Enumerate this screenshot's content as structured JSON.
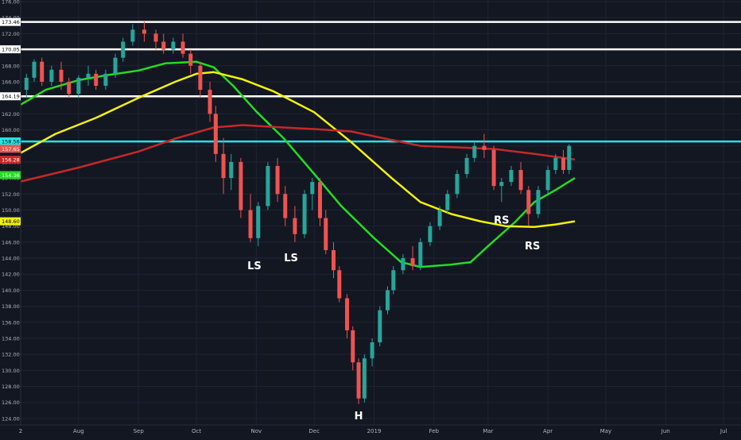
{
  "chart_data": {
    "type": "candlestick",
    "title": "",
    "xlabel": "",
    "ylabel": "",
    "ylim": [
      123.2,
      176.2
    ],
    "y_ticks": [
      124,
      126,
      128,
      130,
      132,
      134,
      136,
      138,
      140,
      142,
      144,
      146,
      148,
      150,
      152,
      154,
      156,
      158,
      160,
      162,
      164,
      166,
      168,
      170,
      172,
      174,
      176
    ],
    "y_tick_labels": [
      "124.00",
      "126.00",
      "128.00",
      "130.00",
      "132.00",
      "134.00",
      "136.00",
      "138.00",
      "140.00",
      "142.00",
      "144.00",
      "146.00",
      "148.00",
      "150.00",
      "152.00",
      "154.00",
      "156.00",
      "158.00",
      "160.00",
      "162.00",
      "164.00",
      "166.00",
      "168.00",
      "170.00",
      "172.00",
      "174.00",
      "176.00"
    ],
    "x_range": [
      "2018-07-02",
      "2019-07-10"
    ],
    "x_ticks": [
      {
        "date": "2018-07-02",
        "label": "2"
      },
      {
        "date": "2018-08-01",
        "label": "Aug"
      },
      {
        "date": "2018-09-01",
        "label": "Sep"
      },
      {
        "date": "2018-10-01",
        "label": "Oct"
      },
      {
        "date": "2018-11-01",
        "label": "Nov"
      },
      {
        "date": "2018-12-01",
        "label": "Dec"
      },
      {
        "date": "2019-01-01",
        "label": "2019"
      },
      {
        "date": "2019-02-01",
        "label": "Feb"
      },
      {
        "date": "2019-03-01",
        "label": "Mar"
      },
      {
        "date": "2019-04-01",
        "label": "Apr"
      },
      {
        "date": "2019-05-01",
        "label": "May"
      },
      {
        "date": "2019-06-01",
        "label": "Jun"
      },
      {
        "date": "2019-07-01",
        "label": "Jul"
      }
    ],
    "colors": {
      "background": "#131722",
      "grid": "#1f2433",
      "axis_text": "#b2b5be",
      "up": "#26a69a",
      "down": "#ef5350",
      "ma_green": "#22dd22",
      "ma_yellow": "#f2f20a",
      "ma_red": "#c62828",
      "level_white": "#ffffff",
      "level_cyan": "#22e5e5"
    },
    "horizontal_levels": [
      {
        "value": 173.46,
        "label": "173.46",
        "color": "#ffffff"
      },
      {
        "value": 170.05,
        "label": "170.05",
        "color": "#ffffff"
      },
      {
        "value": 164.19,
        "label": "164.19",
        "color": "#ffffff"
      },
      {
        "value": 158.56,
        "label": "158.56",
        "color": "#22e5e5"
      }
    ],
    "price_badges": [
      {
        "value": 157.65,
        "label": "157.65",
        "bg": "#ef5350"
      },
      {
        "value": 156.28,
        "label": "156.28",
        "bg": "#c62828"
      },
      {
        "value": 154.36,
        "label": "154.36",
        "bg": "#22dd22"
      },
      {
        "value": 148.6,
        "label": "148.60",
        "bg": "#f2f20a"
      }
    ],
    "series": [
      {
        "type": "moving_average",
        "color": "#22dd22",
        "points": [
          [
            "2018-07-01",
            163.0
          ],
          [
            "2018-07-15",
            165.0
          ],
          [
            "2018-08-01",
            166.2
          ],
          [
            "2018-08-15",
            166.8
          ],
          [
            "2018-09-01",
            167.4
          ],
          [
            "2018-09-15",
            168.3
          ],
          [
            "2018-10-01",
            168.5
          ],
          [
            "2018-10-10",
            167.8
          ],
          [
            "2018-10-20",
            165.5
          ],
          [
            "2018-11-01",
            162.3
          ],
          [
            "2018-11-15",
            159.0
          ],
          [
            "2018-12-01",
            154.5
          ],
          [
            "2018-12-15",
            150.5
          ],
          [
            "2019-01-01",
            146.5
          ],
          [
            "2019-01-15",
            143.5
          ],
          [
            "2019-01-25",
            142.9
          ],
          [
            "2019-02-10",
            143.2
          ],
          [
            "2019-02-20",
            143.5
          ],
          [
            "2019-03-01",
            145.5
          ],
          [
            "2019-03-15",
            148.5
          ],
          [
            "2019-03-25",
            151.0
          ],
          [
            "2019-04-05",
            152.5
          ],
          [
            "2019-04-15",
            154.0
          ]
        ]
      },
      {
        "type": "moving_average",
        "color": "#f2f20a",
        "points": [
          [
            "2018-07-01",
            157.0
          ],
          [
            "2018-07-20",
            159.5
          ],
          [
            "2018-08-10",
            161.5
          ],
          [
            "2018-09-01",
            164.0
          ],
          [
            "2018-09-20",
            166.0
          ],
          [
            "2018-10-01",
            167.0
          ],
          [
            "2018-10-10",
            167.2
          ],
          [
            "2018-10-25",
            166.3
          ],
          [
            "2018-11-10",
            164.8
          ],
          [
            "2018-12-01",
            162.2
          ],
          [
            "2018-12-20",
            158.5
          ],
          [
            "2019-01-10",
            154.0
          ],
          [
            "2019-01-25",
            151.0
          ],
          [
            "2019-02-10",
            149.5
          ],
          [
            "2019-02-25",
            148.6
          ],
          [
            "2019-03-10",
            148.0
          ],
          [
            "2019-03-25",
            147.9
          ],
          [
            "2019-04-05",
            148.2
          ],
          [
            "2019-04-15",
            148.6
          ]
        ]
      },
      {
        "type": "moving_average",
        "color": "#c62828",
        "points": [
          [
            "2018-07-01",
            153.5
          ],
          [
            "2018-08-01",
            155.3
          ],
          [
            "2018-09-01",
            157.3
          ],
          [
            "2018-09-20",
            158.9
          ],
          [
            "2018-10-10",
            160.3
          ],
          [
            "2018-10-25",
            160.6
          ],
          [
            "2018-11-15",
            160.3
          ],
          [
            "2018-12-01",
            160.1
          ],
          [
            "2018-12-20",
            159.8
          ],
          [
            "2019-01-05",
            159.0
          ],
          [
            "2019-01-25",
            158.0
          ],
          [
            "2019-02-15",
            157.8
          ],
          [
            "2019-03-05",
            157.6
          ],
          [
            "2019-03-25",
            157.0
          ],
          [
            "2019-04-15",
            156.3
          ]
        ]
      }
    ],
    "ohlc": [
      [
        "2018-07-05",
        165,
        167,
        164,
        166.5
      ],
      [
        "2018-07-09",
        166.5,
        168.8,
        166,
        168.5
      ],
      [
        "2018-07-13",
        168.5,
        169,
        165.5,
        166
      ],
      [
        "2018-07-18",
        166,
        168,
        165.5,
        167.5
      ],
      [
        "2018-07-23",
        167.5,
        168.5,
        165,
        166
      ],
      [
        "2018-07-27",
        166,
        166.5,
        164,
        164.5
      ],
      [
        "2018-08-01",
        164.5,
        166.8,
        164,
        166.5
      ],
      [
        "2018-08-06",
        166.5,
        168,
        165.5,
        167
      ],
      [
        "2018-08-10",
        167,
        167.5,
        165,
        165.5
      ],
      [
        "2018-08-15",
        165.5,
        167.5,
        165,
        167
      ],
      [
        "2018-08-20",
        167,
        169.5,
        166.5,
        169
      ],
      [
        "2018-08-24",
        169,
        171.5,
        168.5,
        171
      ],
      [
        "2018-08-29",
        171,
        173.2,
        170.5,
        172.5
      ],
      [
        "2018-09-04",
        172.5,
        173.5,
        171,
        172
      ],
      [
        "2018-09-10",
        172,
        172.5,
        170,
        171
      ],
      [
        "2018-09-14",
        171,
        172,
        169.5,
        170
      ],
      [
        "2018-09-19",
        170,
        171.5,
        169.5,
        171
      ],
      [
        "2018-09-24",
        171,
        172,
        169,
        169.5
      ],
      [
        "2018-09-28",
        169.5,
        170,
        167,
        168
      ],
      [
        "2018-10-03",
        168,
        168.5,
        164,
        165
      ],
      [
        "2018-10-08",
        165,
        166,
        161,
        162
      ],
      [
        "2018-10-11",
        162,
        163,
        156,
        157
      ],
      [
        "2018-10-15",
        157,
        159,
        152,
        154
      ],
      [
        "2018-10-19",
        154,
        157,
        152.5,
        156
      ],
      [
        "2018-10-24",
        156,
        156.5,
        149,
        150
      ],
      [
        "2018-10-29",
        150,
        152,
        146,
        146.5
      ],
      [
        "2018-11-02",
        146.5,
        151,
        145.5,
        150.5
      ],
      [
        "2018-11-07",
        150.5,
        156,
        150,
        155.5
      ],
      [
        "2018-11-12",
        155.5,
        156.5,
        151,
        152
      ],
      [
        "2018-11-16",
        152,
        153,
        148,
        149
      ],
      [
        "2018-11-21",
        149,
        150.5,
        146,
        147
      ],
      [
        "2018-11-26",
        147,
        152.5,
        146.5,
        152
      ],
      [
        "2018-11-30",
        152,
        154,
        150,
        153.5
      ],
      [
        "2018-12-04",
        153.5,
        154,
        148,
        149
      ],
      [
        "2018-12-07",
        149,
        150,
        144.5,
        145
      ],
      [
        "2018-12-11",
        145,
        146,
        141.5,
        142.5
      ],
      [
        "2018-12-14",
        142.5,
        143,
        138.5,
        139
      ],
      [
        "2018-12-18",
        139,
        139.5,
        134,
        135
      ],
      [
        "2018-12-21",
        135,
        135.5,
        130,
        131
      ],
      [
        "2018-12-24",
        131,
        131.5,
        125.8,
        126.5
      ],
      [
        "2018-12-27",
        126.5,
        132,
        126,
        131.5
      ],
      [
        "2018-12-31",
        131.5,
        134,
        130.5,
        133.5
      ],
      [
        "2019-01-04",
        133.5,
        138,
        133,
        137.5
      ],
      [
        "2019-01-08",
        137.5,
        140.5,
        137,
        140
      ],
      [
        "2019-01-11",
        140,
        143,
        139.5,
        142.5
      ],
      [
        "2019-01-16",
        142.5,
        144.5,
        142,
        144
      ],
      [
        "2019-01-21",
        144,
        145.5,
        142.5,
        143
      ],
      [
        "2019-01-25",
        143,
        146.5,
        142.5,
        146
      ],
      [
        "2019-01-30",
        146,
        148.5,
        145.5,
        148
      ],
      [
        "2019-02-04",
        148,
        150.5,
        147.5,
        150
      ],
      [
        "2019-02-08",
        150,
        152.5,
        149.5,
        152
      ],
      [
        "2019-02-13",
        152,
        155,
        151.5,
        154.5
      ],
      [
        "2019-02-18",
        154.5,
        157,
        154,
        156.5
      ],
      [
        "2019-02-22",
        156.5,
        158.5,
        156,
        158
      ],
      [
        "2019-02-27",
        158,
        159.5,
        156.5,
        157.5
      ],
      [
        "2019-03-04",
        157.5,
        158,
        152.5,
        153
      ],
      [
        "2019-03-08",
        153,
        154,
        151,
        153.5
      ],
      [
        "2019-03-13",
        153.5,
        155.5,
        153,
        155
      ],
      [
        "2019-03-18",
        155,
        156,
        152,
        152.5
      ],
      [
        "2019-03-22",
        152.5,
        153,
        148,
        149.5
      ],
      [
        "2019-03-27",
        149.5,
        153,
        149,
        152.5
      ],
      [
        "2019-04-01",
        152.5,
        155.5,
        152,
        155
      ],
      [
        "2019-04-05",
        155,
        157,
        154.5,
        156.5
      ],
      [
        "2019-04-09",
        156.5,
        157.5,
        154.5,
        155
      ],
      [
        "2019-04-12",
        155,
        158.2,
        154.5,
        158
      ]
    ],
    "annotations": [
      {
        "text": "LS",
        "date": "2018-10-31",
        "y": 142.6
      },
      {
        "text": "LS",
        "date": "2018-11-19",
        "y": 143.6
      },
      {
        "text": "H",
        "date": "2018-12-24",
        "y": 123.9
      },
      {
        "text": "RS",
        "date": "2019-03-08",
        "y": 148.3
      },
      {
        "text": "RS",
        "date": "2019-03-24",
        "y": 145.1
      }
    ]
  }
}
